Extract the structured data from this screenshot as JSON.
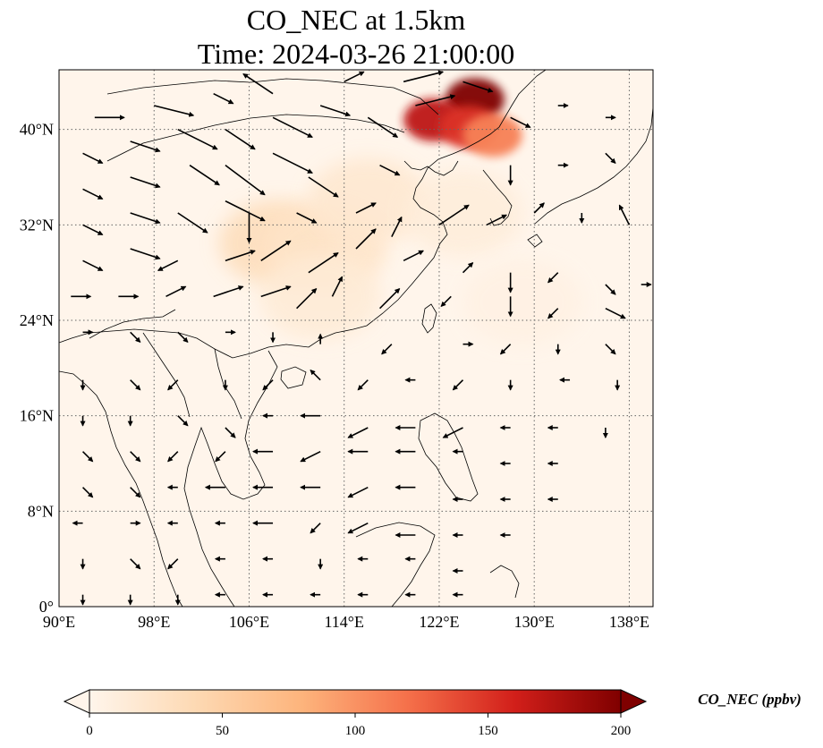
{
  "title": {
    "line1": "CO_NEC at 1.5km",
    "line2": "Time: 2024-03-26 21:00:00"
  },
  "map": {
    "projection": "PlateCarree",
    "lon_range": [
      90,
      140
    ],
    "lat_range": [
      0,
      45
    ],
    "lon_ticks": [
      {
        "value": 90,
        "label": "90°E"
      },
      {
        "value": 98,
        "label": "98°E"
      },
      {
        "value": 106,
        "label": "106°E"
      },
      {
        "value": 114,
        "label": "114°E"
      },
      {
        "value": 122,
        "label": "122°E"
      },
      {
        "value": 130,
        "label": "130°E"
      },
      {
        "value": 138,
        "label": "138°E"
      }
    ],
    "lat_ticks": [
      {
        "value": 0,
        "label": "0°"
      },
      {
        "value": 8,
        "label": "8°N"
      },
      {
        "value": 16,
        "label": "16°N"
      },
      {
        "value": 24,
        "label": "24°N"
      },
      {
        "value": 32,
        "label": "32°N"
      },
      {
        "value": 40,
        "label": "40°N"
      }
    ],
    "gridlines": "dotted",
    "background_color": "#fff5eb",
    "plume_regions": [
      {
        "lon": 125.0,
        "lat": 42.5,
        "value": 200
      },
      {
        "lon": 121.5,
        "lat": 40.8,
        "value": 170
      },
      {
        "lon": 124.5,
        "lat": 40.2,
        "value": 150
      },
      {
        "lon": 126.5,
        "lat": 39.5,
        "value": 110
      },
      {
        "lon": 108.5,
        "lat": 30.5,
        "value": 35
      },
      {
        "lon": 112.5,
        "lat": 30.0,
        "value": 25
      },
      {
        "lon": 116.0,
        "lat": 34.0,
        "value": 20
      },
      {
        "lon": 112.0,
        "lat": 26.0,
        "value": 15
      },
      {
        "lon": 124.0,
        "lat": 33.0,
        "value": 12
      },
      {
        "lon": 129.0,
        "lat": 25.5,
        "value": 6
      }
    ]
  },
  "colorbar": {
    "colormap": "OrRd",
    "min": 0,
    "max": 200,
    "extend": "both",
    "ticks": [
      {
        "value": 0,
        "label": "0"
      },
      {
        "value": 50,
        "label": "50"
      },
      {
        "value": 100,
        "label": "100"
      },
      {
        "value": 150,
        "label": "150"
      },
      {
        "value": 200,
        "label": "200"
      }
    ],
    "label": "CO_NEC (ppbv)"
  },
  "wind_vectors": [
    [
      93,
      41,
      3,
      0
    ],
    [
      98,
      42,
      4,
      -1
    ],
    [
      103,
      43,
      2,
      -1
    ],
    [
      108,
      43,
      -3,
      2
    ],
    [
      114,
      44,
      2,
      1
    ],
    [
      119,
      44,
      4,
      1
    ],
    [
      124,
      44,
      3,
      -1
    ],
    [
      92,
      38,
      2,
      -1
    ],
    [
      96,
      39,
      3,
      -1
    ],
    [
      100,
      40,
      4,
      -2
    ],
    [
      104,
      40,
      3,
      -2
    ],
    [
      108,
      41,
      4,
      -2
    ],
    [
      112,
      42,
      3,
      -1
    ],
    [
      116,
      41,
      3,
      -2
    ],
    [
      120,
      42,
      4,
      1
    ],
    [
      128,
      41,
      2,
      -1
    ],
    [
      132,
      42,
      1,
      0
    ],
    [
      136,
      41,
      1,
      0
    ],
    [
      92,
      35,
      2,
      -1
    ],
    [
      96,
      36,
      3,
      -1
    ],
    [
      101,
      37,
      3,
      -2
    ],
    [
      104,
      37,
      4,
      -3
    ],
    [
      108,
      38,
      4,
      -2
    ],
    [
      111,
      36,
      3,
      -2
    ],
    [
      117,
      37,
      2,
      -1
    ],
    [
      128,
      37,
      0,
      -2
    ],
    [
      132,
      37,
      1,
      0
    ],
    [
      136,
      38,
      1,
      -1
    ],
    [
      92,
      32,
      2,
      -1
    ],
    [
      96,
      33,
      3,
      -1
    ],
    [
      100,
      33,
      3,
      -2
    ],
    [
      104,
      34,
      4,
      -2
    ],
    [
      106,
      33,
      0,
      -3
    ],
    [
      110,
      33,
      2,
      -1
    ],
    [
      115,
      33,
      2,
      1
    ],
    [
      118,
      31,
      1,
      2
    ],
    [
      122,
      32,
      3,
      2
    ],
    [
      126,
      32,
      2,
      1
    ],
    [
      130,
      33,
      1,
      1
    ],
    [
      134,
      33,
      0,
      -1
    ],
    [
      138,
      32,
      -1,
      2
    ],
    [
      92,
      29,
      2,
      -1
    ],
    [
      96,
      30,
      3,
      -1
    ],
    [
      100,
      29,
      -2,
      -1
    ],
    [
      104,
      29,
      3,
      1
    ],
    [
      107,
      29,
      3,
      2
    ],
    [
      111,
      28,
      3,
      2
    ],
    [
      115,
      30,
      2,
      2
    ],
    [
      119,
      29,
      2,
      1
    ],
    [
      124,
      28,
      1,
      1
    ],
    [
      128,
      28,
      0,
      -2
    ],
    [
      132,
      28,
      -1,
      -1
    ],
    [
      136,
      27,
      1,
      -1
    ],
    [
      139,
      27,
      1,
      0
    ],
    [
      91,
      26,
      2,
      0
    ],
    [
      95,
      26,
      2,
      0
    ],
    [
      99,
      26,
      2,
      1
    ],
    [
      103,
      26,
      3,
      1
    ],
    [
      107,
      26,
      3,
      1
    ],
    [
      110,
      25,
      2,
      2
    ],
    [
      113,
      26,
      1,
      2
    ],
    [
      117,
      25,
      2,
      2
    ],
    [
      123,
      26,
      -1,
      -1
    ],
    [
      128,
      26,
      0,
      -2
    ],
    [
      132,
      25,
      -1,
      -1
    ],
    [
      136,
      25,
      2,
      -1
    ],
    [
      92,
      23,
      1,
      0
    ],
    [
      96,
      23,
      1,
      -1
    ],
    [
      100,
      23,
      1,
      -1
    ],
    [
      104,
      23,
      1,
      0
    ],
    [
      108,
      23,
      0,
      -1
    ],
    [
      112,
      22,
      0,
      1
    ],
    [
      118,
      22,
      -1,
      -1
    ],
    [
      124,
      22,
      1,
      0
    ],
    [
      128,
      22,
      -1,
      -1
    ],
    [
      132,
      22,
      0,
      -1
    ],
    [
      136,
      22,
      1,
      -1
    ],
    [
      92,
      19,
      0,
      -1
    ],
    [
      96,
      19,
      1,
      -1
    ],
    [
      100,
      19,
      -1,
      -1
    ],
    [
      104,
      19,
      0,
      -1
    ],
    [
      108,
      19,
      -1,
      -1
    ],
    [
      112,
      19,
      -1,
      1
    ],
    [
      116,
      19,
      -1,
      -1
    ],
    [
      120,
      19,
      -1,
      0
    ],
    [
      124,
      19,
      -1,
      -1
    ],
    [
      128,
      19,
      0,
      -1
    ],
    [
      133,
      19,
      -1,
      0
    ],
    [
      137,
      19,
      0,
      -1
    ],
    [
      92,
      16,
      0,
      -1
    ],
    [
      96,
      16,
      0,
      -1
    ],
    [
      100,
      16,
      1,
      -1
    ],
    [
      104,
      15,
      1,
      -1
    ],
    [
      108,
      16,
      -1,
      0
    ],
    [
      112,
      16,
      -2,
      0
    ],
    [
      116,
      15,
      -2,
      -1
    ],
    [
      120,
      15,
      -2,
      0
    ],
    [
      124,
      15,
      -2,
      -1
    ],
    [
      128,
      15,
      -1,
      0
    ],
    [
      132,
      15,
      -1,
      0
    ],
    [
      136,
      15,
      0,
      -1
    ],
    [
      92,
      13,
      1,
      -1
    ],
    [
      96,
      13,
      1,
      -1
    ],
    [
      100,
      13,
      -1,
      -1
    ],
    [
      104,
      13,
      -1,
      -1
    ],
    [
      108,
      13,
      -2,
      0
    ],
    [
      112,
      13,
      -2,
      -1
    ],
    [
      116,
      13,
      -2,
      0
    ],
    [
      120,
      13,
      -2,
      0
    ],
    [
      124,
      13,
      -1,
      0
    ],
    [
      128,
      12,
      -1,
      0
    ],
    [
      132,
      12,
      -1,
      0
    ],
    [
      92,
      10,
      1,
      -1
    ],
    [
      96,
      10,
      1,
      -1
    ],
    [
      100,
      10,
      -1,
      0
    ],
    [
      104,
      10,
      -2,
      0
    ],
    [
      108,
      10,
      -2,
      0
    ],
    [
      112,
      10,
      -2,
      0
    ],
    [
      116,
      10,
      -2,
      -1
    ],
    [
      120,
      10,
      -2,
      0
    ],
    [
      124,
      9,
      -1,
      0
    ],
    [
      128,
      9,
      -1,
      0
    ],
    [
      132,
      9,
      -1,
      0
    ],
    [
      92,
      7,
      -1,
      0
    ],
    [
      96,
      7,
      1,
      0
    ],
    [
      100,
      7,
      -1,
      0
    ],
    [
      104,
      7,
      -1,
      0
    ],
    [
      108,
      7,
      -2,
      0
    ],
    [
      112,
      7,
      -1,
      -1
    ],
    [
      116,
      7,
      -2,
      -1
    ],
    [
      120,
      6,
      -2,
      0
    ],
    [
      124,
      6,
      -1,
      0
    ],
    [
      128,
      6,
      -1,
      0
    ],
    [
      92,
      4,
      0,
      -1
    ],
    [
      96,
      4,
      1,
      -1
    ],
    [
      100,
      4,
      -1,
      -1
    ],
    [
      104,
      4,
      -1,
      0
    ],
    [
      108,
      4,
      -1,
      0
    ],
    [
      112,
      4,
      0,
      -1
    ],
    [
      116,
      4,
      -1,
      0
    ],
    [
      120,
      4,
      -1,
      0
    ],
    [
      124,
      3,
      -1,
      0
    ],
    [
      92,
      1,
      0,
      -1
    ],
    [
      96,
      1,
      0,
      -1
    ],
    [
      100,
      1,
      0,
      -1
    ],
    [
      104,
      1,
      -1,
      0
    ],
    [
      108,
      1,
      -1,
      0
    ],
    [
      112,
      1,
      -1,
      0
    ],
    [
      116,
      1,
      -1,
      0
    ],
    [
      120,
      1,
      -1,
      0
    ],
    [
      124,
      1,
      -1,
      0
    ]
  ]
}
